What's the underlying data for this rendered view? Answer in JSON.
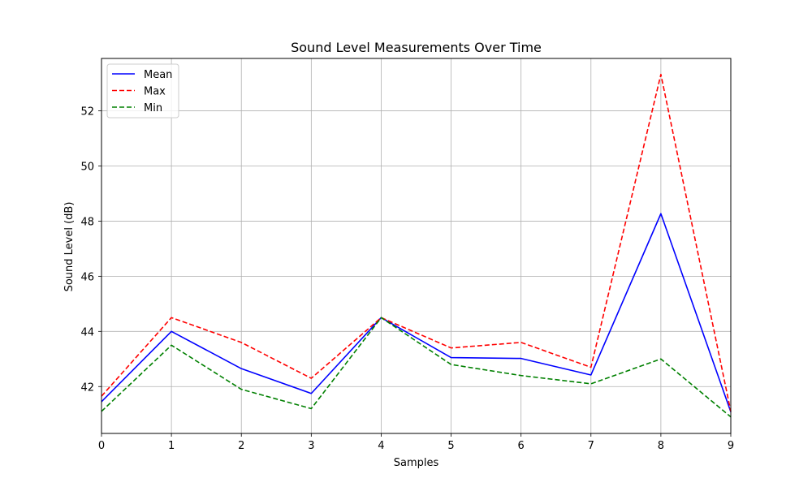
{
  "chart_data": {
    "type": "line",
    "title": "Sound Level Measurements Over Time",
    "xlabel": "Samples",
    "ylabel": "Sound Level (dB)",
    "x": [
      0,
      1,
      2,
      3,
      4,
      5,
      6,
      7,
      8,
      9
    ],
    "xlim": [
      0,
      9
    ],
    "ylim": [
      40.3,
      53.9
    ],
    "xticks": [
      0,
      1,
      2,
      3,
      4,
      5,
      6,
      7,
      8,
      9
    ],
    "yticks": [
      42,
      44,
      46,
      48,
      50,
      52
    ],
    "grid": true,
    "legend_position": "top-left",
    "series": [
      {
        "name": "Mean",
        "color": "#0000ff",
        "dash": "solid",
        "values": [
          41.45,
          44.0,
          42.65,
          41.75,
          44.5,
          43.05,
          43.02,
          42.42,
          48.27,
          41.08
        ]
      },
      {
        "name": "Max",
        "color": "#ff0000",
        "dash": "dashed",
        "values": [
          41.65,
          44.5,
          43.6,
          42.3,
          44.5,
          43.4,
          43.6,
          42.7,
          53.32,
          41.1
        ]
      },
      {
        "name": "Min",
        "color": "#008000",
        "dash": "dashed",
        "values": [
          41.1,
          43.5,
          41.9,
          41.2,
          44.5,
          42.8,
          42.4,
          42.1,
          43.0,
          40.9
        ]
      }
    ]
  }
}
